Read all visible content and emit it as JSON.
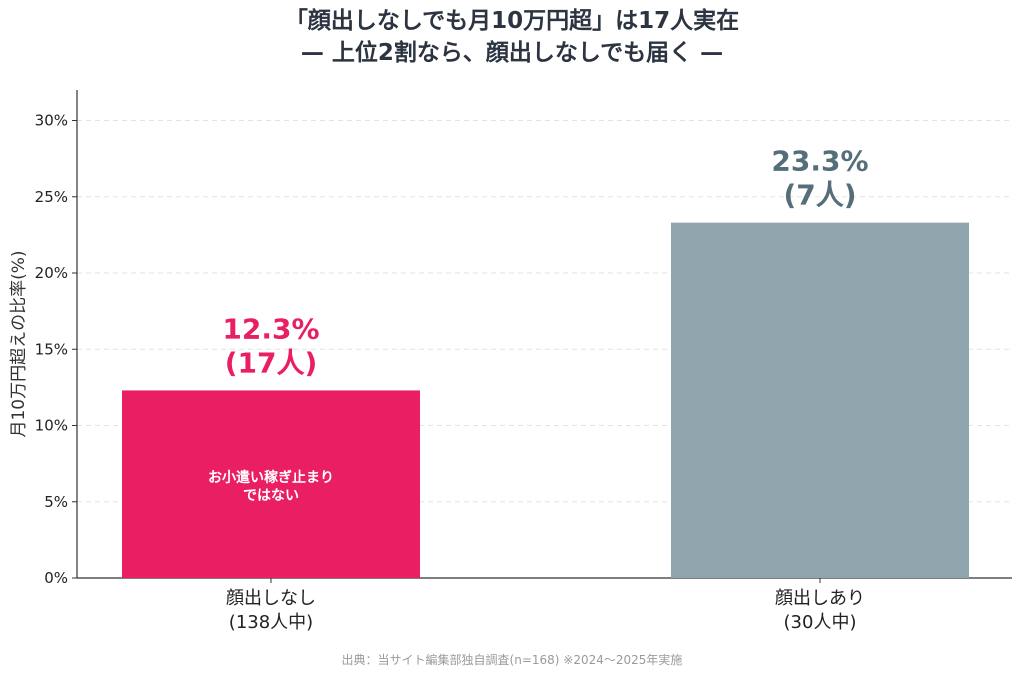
{
  "chart_data": {
    "type": "bar",
    "title_line1": "「顔出しなしでも月10万円超」は17人実在",
    "title_line2": "— 上位2割なら、顔出しなしでも届く —",
    "ylabel": "月10万円超えの比率(%)",
    "ylim": [
      0,
      32
    ],
    "yticks": [
      "0%",
      "5%",
      "10%",
      "15%",
      "20%",
      "25%",
      "30%"
    ],
    "ytick_values": [
      0,
      5,
      10,
      15,
      20,
      25,
      30
    ],
    "grid": true,
    "categories": [
      {
        "line1": "顔出しなし",
        "line2": "(138人中)"
      },
      {
        "line1": "顔出しあり",
        "line2": "(30人中)"
      }
    ],
    "values": [
      12.3,
      23.3
    ],
    "value_labels": [
      {
        "pct": "12.3%",
        "count": "(17人)"
      },
      {
        "pct": "23.3%",
        "count": "(7人)"
      }
    ],
    "bar_colors": [
      "#e91e63",
      "#90a4ae"
    ],
    "label_colors": [
      "#e91e63",
      "#546e7a"
    ],
    "inner_annotation": {
      "line1": "お小遣い稼ぎ止まり",
      "line2": "ではない"
    }
  },
  "footer": "出典：当サイト編集部独自調査(n=168) ※2024〜2025年実施"
}
